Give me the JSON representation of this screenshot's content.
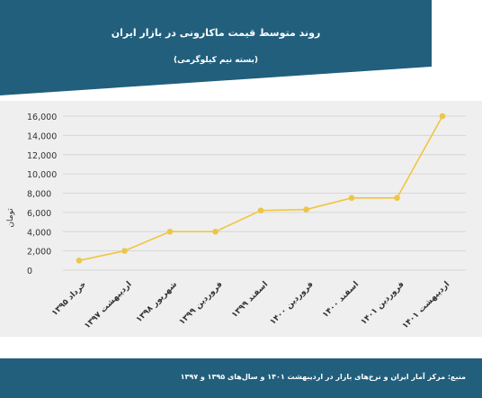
{
  "header": {
    "title": "روند متوسط قیمت ماکارونی در بازار ایران",
    "subtitle": "(بسته نیم کیلوگرمی)"
  },
  "chart_data": {
    "type": "line",
    "title": "روند متوسط قیمت ماکارونی در بازار ایران",
    "subtitle": "(بسته نیم کیلوگرمی)",
    "ylabel": "تومان",
    "xlabel": "",
    "categories": [
      "خرداد ۱۳۹۵",
      "اردیبهشت ۱۳۹۷",
      "شهریور ۱۳۹۸",
      "فروردین ۱۳۹۹",
      "اسفند ۱۳۹۹",
      "فروردین ۱۴۰۰",
      "اسفند ۱۴۰۰",
      "فروردین ۱۴۰۱",
      "اردیبهشت ۱۴۰۱"
    ],
    "series": [
      {
        "values": [
          1000,
          2000,
          4000,
          4000,
          6200,
          6300,
          7500,
          7500,
          16000
        ]
      }
    ],
    "ylim": [
      0,
      16000
    ],
    "yticks": [
      0,
      2000,
      4000,
      6000,
      8000,
      10000,
      12000,
      14000,
      16000
    ],
    "ytick_labels": [
      "0",
      "2,000",
      "4,000",
      "6,000",
      "8,000",
      "10,000",
      "12,000",
      "14,000",
      "16,000"
    ],
    "grid": true,
    "line_color": "#f0c53c",
    "marker_color": "#ecc64a"
  },
  "footer": {
    "source": "منبع: مرکز آمار ایران و نرخ‌های بازار در اردیبهشت ۱۴۰۱ و سال‌های ۱۳۹۵ و ۱۳۹۷"
  },
  "colors": {
    "header_bg": "#215f7d",
    "panel_bg": "#efefef",
    "grid": "#d6d6d6"
  }
}
